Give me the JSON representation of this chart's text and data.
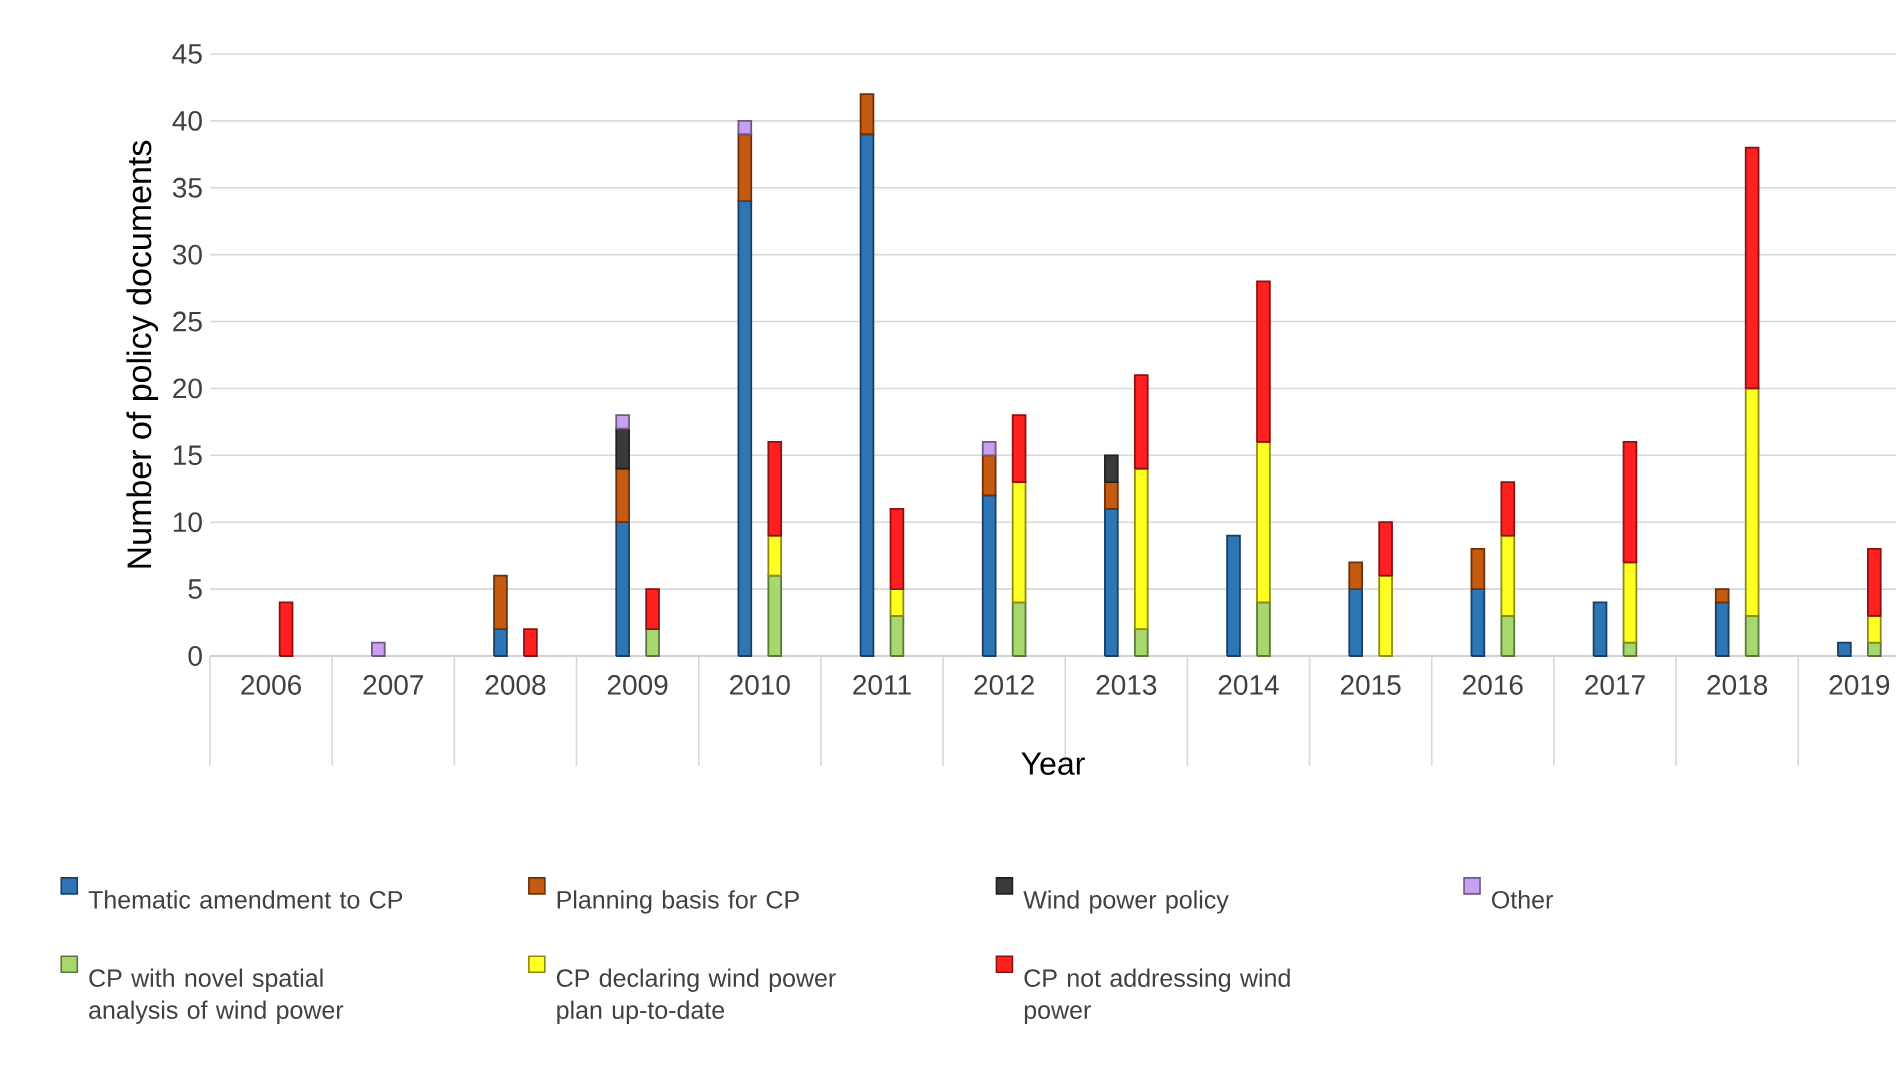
{
  "chart_data": {
    "type": "bar",
    "xlabel": "Year",
    "ylabel": "Number of policy documents",
    "categories": [
      "2006",
      "2007",
      "2008",
      "2009",
      "2010",
      "2011",
      "2012",
      "2013",
      "2014",
      "2015",
      "2016",
      "2017",
      "2018",
      "2019"
    ],
    "ylim": [
      0,
      45
    ],
    "yticks": [
      0,
      5,
      10,
      15,
      20,
      25,
      30,
      35,
      40,
      45
    ],
    "grid": "y",
    "legend": "bottom",
    "series": [
      {
        "name": "Thematic amendment to CP",
        "color": "#2e75b6",
        "base": [
          null,
          null,
          0,
          0,
          0,
          0,
          0,
          0,
          0,
          0,
          0,
          0,
          0,
          0
        ],
        "values": [
          0,
          0,
          2,
          10,
          34,
          39,
          12,
          11,
          9,
          5,
          5,
          4,
          4,
          1
        ]
      },
      {
        "name": "Planning basis for CP",
        "color": "#c55a11",
        "base": [
          null,
          null,
          2,
          10,
          34,
          39,
          12,
          11,
          null,
          5,
          5,
          null,
          4,
          null
        ],
        "values": [
          0,
          0,
          4,
          4,
          5,
          3,
          3,
          2,
          0,
          2,
          3,
          0,
          1,
          0
        ]
      },
      {
        "name": "Wind power policy",
        "color": "#3a3a3a",
        "base": [
          null,
          null,
          null,
          14,
          null,
          null,
          null,
          13,
          null,
          null,
          null,
          null,
          null,
          null
        ],
        "values": [
          0,
          0,
          0,
          3,
          0,
          0,
          0,
          2,
          0,
          0,
          0,
          0,
          0,
          0
        ]
      },
      {
        "name": "Other",
        "color": "#c9a0f0",
        "base": [
          null,
          0,
          null,
          17,
          39,
          null,
          15,
          null,
          null,
          null,
          null,
          null,
          null,
          null
        ],
        "values": [
          0,
          1,
          0,
          1,
          1,
          0,
          1,
          0,
          0,
          0,
          0,
          0,
          0,
          0
        ]
      },
      {
        "name": "CP with novel spatial analysis of wind power",
        "color": "#a6d86e",
        "base": [
          null,
          null,
          null,
          0,
          0,
          0,
          0,
          0,
          0,
          null,
          0,
          0,
          0,
          0
        ],
        "values": [
          0,
          0,
          0,
          2,
          6,
          3,
          4,
          2,
          4,
          0,
          3,
          1,
          3,
          1
        ]
      },
      {
        "name": "CP declaring wind power plan up-to-date",
        "color": "#ffff21",
        "base": [
          null,
          null,
          null,
          null,
          6,
          3,
          4,
          2,
          4,
          0,
          3,
          1,
          3,
          1
        ],
        "values": [
          0,
          0,
          0,
          0,
          3,
          2,
          9,
          12,
          12,
          6,
          6,
          6,
          17,
          2
        ]
      },
      {
        "name": "CP not addressing wind power",
        "color": "#ff2020",
        "base": [
          0,
          null,
          0,
          2,
          9,
          5,
          13,
          14,
          16,
          6,
          9,
          7,
          20,
          3
        ],
        "values": [
          4,
          0,
          2,
          3,
          7,
          6,
          5,
          7,
          12,
          4,
          4,
          9,
          18,
          5
        ]
      }
    ]
  }
}
